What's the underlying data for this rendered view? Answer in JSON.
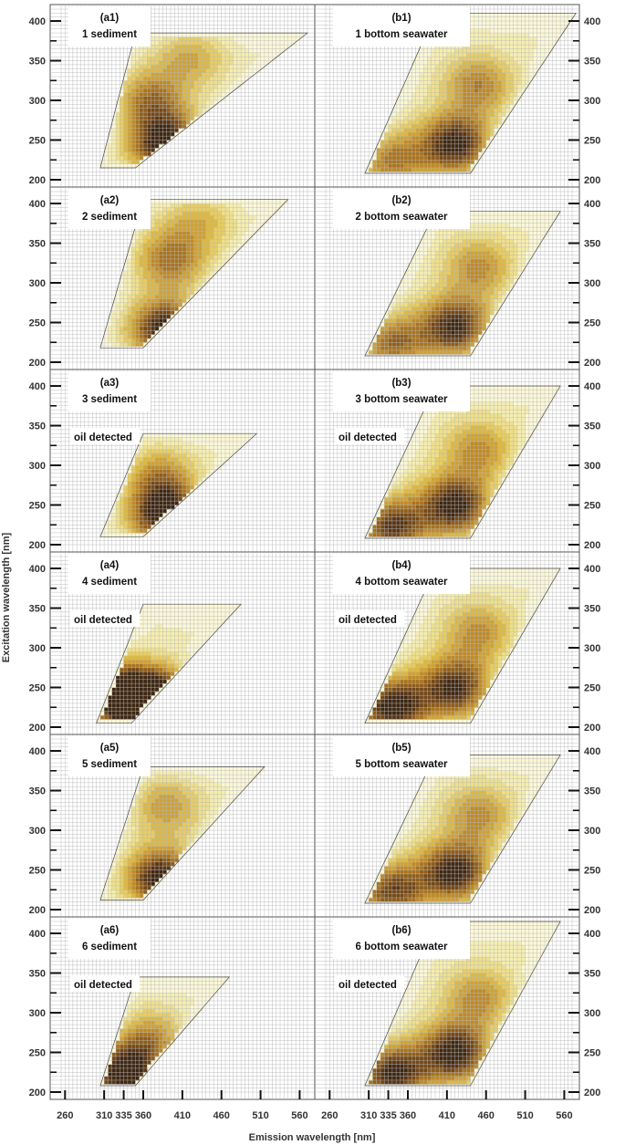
{
  "figure": {
    "xlabel": "Emission wavelength [nm]",
    "ylabel": "Excitation wavelength [nm]"
  },
  "colors": {
    "grid": "#b8b8b8",
    "contour": "#4a4a4a",
    "levels": [
      "#fbf8d8",
      "#f6eeb0",
      "#efe08a",
      "#e8cd62",
      "#dcb843",
      "#cfa133",
      "#bf8a26",
      "#a9731d",
      "#8f5d19",
      "#744817",
      "#573515",
      "#3d2713"
    ]
  },
  "chart_data": [
    {
      "type": "heatmap",
      "id": "a1",
      "label": "(a1)",
      "sample": "1 sediment",
      "oil": "",
      "peaks": [
        {
          "em": 390,
          "ex": 242,
          "h": 1.0
        },
        {
          "em": 370,
          "ex": 300,
          "h": 0.55
        },
        {
          "em": 420,
          "ex": 355,
          "h": 0.35
        }
      ],
      "region": {
        "ex": [
          215,
          385
        ],
        "em0": [
          305,
          350
        ],
        "em1": [
          350,
          570
        ]
      },
      "ylim": [
        200,
        415
      ],
      "yticks": [
        200,
        250,
        300,
        350,
        400
      ],
      "xlim": [
        255,
        570
      ]
    },
    {
      "type": "heatmap",
      "id": "b1",
      "label": "(b1)",
      "sample": "1 bottom seawater",
      "oil": "",
      "peaks": [
        {
          "em": 420,
          "ex": 245,
          "h": 0.9
        },
        {
          "em": 340,
          "ex": 222,
          "h": 0.55
        },
        {
          "em": 450,
          "ex": 320,
          "h": 0.5
        }
      ],
      "region": {
        "ex": [
          208,
          410
        ],
        "em0": [
          305,
          395
        ],
        "em1": [
          440,
          575
        ]
      },
      "ylim": [
        200,
        415
      ],
      "yticks": [
        200,
        250,
        300,
        350,
        400
      ],
      "xlim": [
        255,
        570
      ]
    },
    {
      "type": "heatmap",
      "id": "a2",
      "label": "(a2)",
      "sample": "2 sediment",
      "oil": "",
      "peaks": [
        {
          "em": 390,
          "ex": 240,
          "h": 1.0
        },
        {
          "em": 395,
          "ex": 330,
          "h": 0.55
        },
        {
          "em": 430,
          "ex": 380,
          "h": 0.3
        }
      ],
      "region": {
        "ex": [
          218,
          405
        ],
        "em0": [
          305,
          360
        ],
        "em1": [
          360,
          545
        ]
      },
      "ylim": [
        200,
        415
      ],
      "yticks": [
        200,
        250,
        300,
        350,
        400
      ],
      "xlim": [
        255,
        570
      ]
    },
    {
      "type": "heatmap",
      "id": "b2",
      "label": "(b2)",
      "sample": "2 bottom seawater",
      "oil": "",
      "peaks": [
        {
          "em": 420,
          "ex": 245,
          "h": 0.85
        },
        {
          "em": 340,
          "ex": 222,
          "h": 0.6
        },
        {
          "em": 450,
          "ex": 320,
          "h": 0.45
        }
      ],
      "region": {
        "ex": [
          208,
          390
        ],
        "em0": [
          305,
          395
        ],
        "em1": [
          440,
          555
        ]
      },
      "ylim": [
        200,
        415
      ],
      "yticks": [
        200,
        250,
        300,
        350,
        400
      ],
      "xlim": [
        255,
        570
      ]
    },
    {
      "type": "heatmap",
      "id": "a3",
      "label": "(a3)",
      "sample": "3 sediment",
      "oil": "oil detected",
      "peaks": [
        {
          "em": 390,
          "ex": 236,
          "h": 1.0
        },
        {
          "em": 380,
          "ex": 285,
          "h": 0.45
        }
      ],
      "region": {
        "ex": [
          210,
          340
        ],
        "em0": [
          305,
          360
        ],
        "em1": [
          360,
          505
        ]
      },
      "ylim": [
        200,
        415
      ],
      "yticks": [
        200,
        250,
        300,
        350,
        400
      ],
      "xlim": [
        255,
        570
      ]
    },
    {
      "type": "heatmap",
      "id": "b3",
      "label": "(b3)",
      "sample": "3 bottom seawater",
      "oil": "oil detected",
      "peaks": [
        {
          "em": 420,
          "ex": 250,
          "h": 0.9
        },
        {
          "em": 340,
          "ex": 222,
          "h": 0.8
        },
        {
          "em": 450,
          "ex": 320,
          "h": 0.45
        }
      ],
      "region": {
        "ex": [
          208,
          400
        ],
        "em0": [
          305,
          395
        ],
        "em1": [
          440,
          555
        ]
      },
      "ylim": [
        200,
        415
      ],
      "yticks": [
        200,
        250,
        300,
        350,
        400
      ],
      "xlim": [
        255,
        570
      ]
    },
    {
      "type": "heatmap",
      "id": "a4",
      "label": "(a4)",
      "sample": "4 sediment",
      "oil": "oil detected",
      "peaks": [
        {
          "em": 380,
          "ex": 235,
          "h": 1.0
        },
        {
          "em": 345,
          "ex": 228,
          "h": 0.9
        },
        {
          "em": 310,
          "ex": 255,
          "h": 0.6
        }
      ],
      "region": {
        "ex": [
          205,
          355
        ],
        "em0": [
          300,
          360
        ],
        "em1": [
          345,
          485
        ]
      },
      "ylim": [
        200,
        415
      ],
      "yticks": [
        200,
        250,
        300,
        350,
        400
      ],
      "xlim": [
        255,
        570
      ]
    },
    {
      "type": "heatmap",
      "id": "b4",
      "label": "(b4)",
      "sample": "4 bottom seawater",
      "oil": "oil detected",
      "peaks": [
        {
          "em": 340,
          "ex": 225,
          "h": 0.95
        },
        {
          "em": 420,
          "ex": 250,
          "h": 0.85
        },
        {
          "em": 450,
          "ex": 320,
          "h": 0.45
        }
      ],
      "region": {
        "ex": [
          205,
          400
        ],
        "em0": [
          305,
          395
        ],
        "em1": [
          440,
          555
        ]
      },
      "ylim": [
        200,
        415
      ],
      "yticks": [
        200,
        250,
        300,
        350,
        400
      ],
      "xlim": [
        255,
        570
      ]
    },
    {
      "type": "heatmap",
      "id": "a5",
      "label": "(a5)",
      "sample": "5 sediment",
      "oil": "",
      "peaks": [
        {
          "em": 385,
          "ex": 238,
          "h": 1.0
        },
        {
          "em": 390,
          "ex": 330,
          "h": 0.4
        }
      ],
      "region": {
        "ex": [
          212,
          380
        ],
        "em0": [
          305,
          360
        ],
        "em1": [
          360,
          515
        ]
      },
      "ylim": [
        200,
        415
      ],
      "yticks": [
        200,
        250,
        300,
        350,
        400
      ],
      "xlim": [
        255,
        570
      ]
    },
    {
      "type": "heatmap",
      "id": "b5",
      "label": "(b5)",
      "sample": "5 bottom seawater",
      "oil": "",
      "peaks": [
        {
          "em": 420,
          "ex": 248,
          "h": 0.9
        },
        {
          "em": 340,
          "ex": 222,
          "h": 0.75
        },
        {
          "em": 450,
          "ex": 320,
          "h": 0.45
        }
      ],
      "region": {
        "ex": [
          208,
          395
        ],
        "em0": [
          305,
          395
        ],
        "em1": [
          440,
          555
        ]
      },
      "ylim": [
        200,
        415
      ],
      "yticks": [
        200,
        250,
        300,
        350,
        400
      ],
      "xlim": [
        255,
        570
      ]
    },
    {
      "type": "heatmap",
      "id": "a6",
      "label": "(a6)",
      "sample": "6 sediment",
      "oil": "oil detected",
      "peaks": [
        {
          "em": 335,
          "ex": 222,
          "h": 1.0
        },
        {
          "em": 370,
          "ex": 265,
          "h": 0.45
        }
      ],
      "region": {
        "ex": [
          208,
          345
        ],
        "em0": [
          305,
          350
        ],
        "em1": [
          350,
          470
        ]
      },
      "ylim": [
        200,
        415
      ],
      "yticks": [
        200,
        250,
        300,
        350,
        400
      ],
      "xlim": [
        255,
        570
      ]
    },
    {
      "type": "heatmap",
      "id": "b6",
      "label": "(b6)",
      "sample": "6 bottom seawater",
      "oil": "oil detected",
      "peaks": [
        {
          "em": 420,
          "ex": 250,
          "h": 0.9
        },
        {
          "em": 340,
          "ex": 222,
          "h": 0.9
        },
        {
          "em": 450,
          "ex": 320,
          "h": 0.45
        }
      ],
      "region": {
        "ex": [
          208,
          415
        ],
        "em0": [
          305,
          395
        ],
        "em1": [
          440,
          555
        ]
      },
      "ylim": [
        200,
        415
      ],
      "yticks": [
        200,
        250,
        300,
        350,
        400
      ],
      "xlim": [
        255,
        570
      ]
    }
  ],
  "xticks": [
    260,
    310,
    335,
    360,
    410,
    460,
    510,
    560
  ]
}
